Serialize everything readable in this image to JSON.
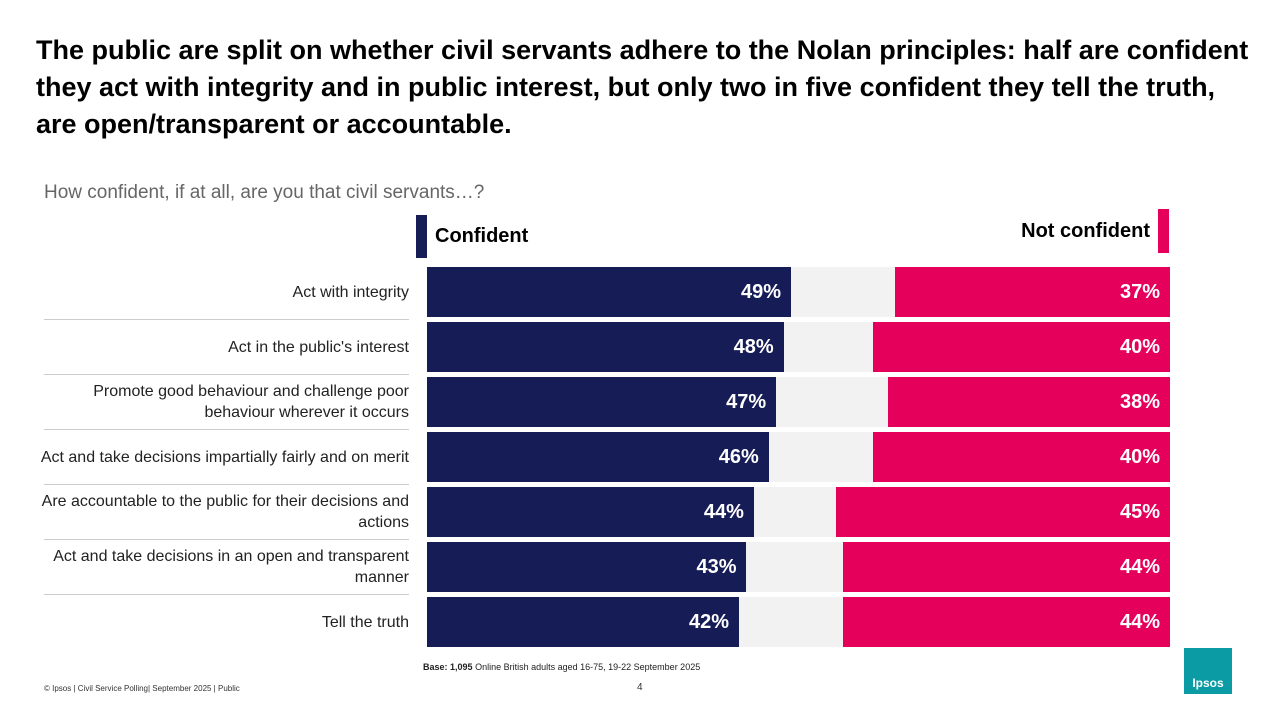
{
  "chart_data": {
    "type": "diverging-bar",
    "title": "The public are split on whether civil servants adhere to the Nolan principles: half are confident they act with integrity and in public interest, but only two in five confident they tell the truth, are open/transparent or accountable.",
    "subtitle": "How confident, if at all, are you that civil servants…?",
    "categories": [
      "Act with integrity",
      "Act in the public's interest",
      "Promote good behaviour and challenge poor behaviour wherever it occurs",
      "Act and take decisions impartially fairly and on merit",
      "Are accountable to the public for their decisions and actions",
      "Act and take decisions in an open and transparent manner",
      "Tell the truth"
    ],
    "xlim": [
      0,
      100
    ],
    "series": [
      {
        "name": "Confident",
        "color": "#161c56",
        "side": "left",
        "values": [
          49,
          48,
          47,
          46,
          44,
          43,
          42
        ],
        "value_labels": [
          "49%",
          "48%",
          "47%",
          "46%",
          "44%",
          "43%",
          "42%"
        ]
      },
      {
        "name": "Not confident",
        "color": "#e5005b",
        "side": "right",
        "values": [
          37,
          40,
          38,
          40,
          45,
          44,
          44
        ],
        "value_labels": [
          "37%",
          "40%",
          "38%",
          "40%",
          "45%",
          "44%",
          "44%"
        ]
      }
    ],
    "base_label": "Base: 1,095",
    "base_text": "Online British adults aged 16-75, 19-22 September 2025"
  },
  "footer": {
    "copyright": "© Ipsos | Civil Service Polling| September 2025 | Public",
    "page": "4",
    "logo": "Ipsos"
  }
}
